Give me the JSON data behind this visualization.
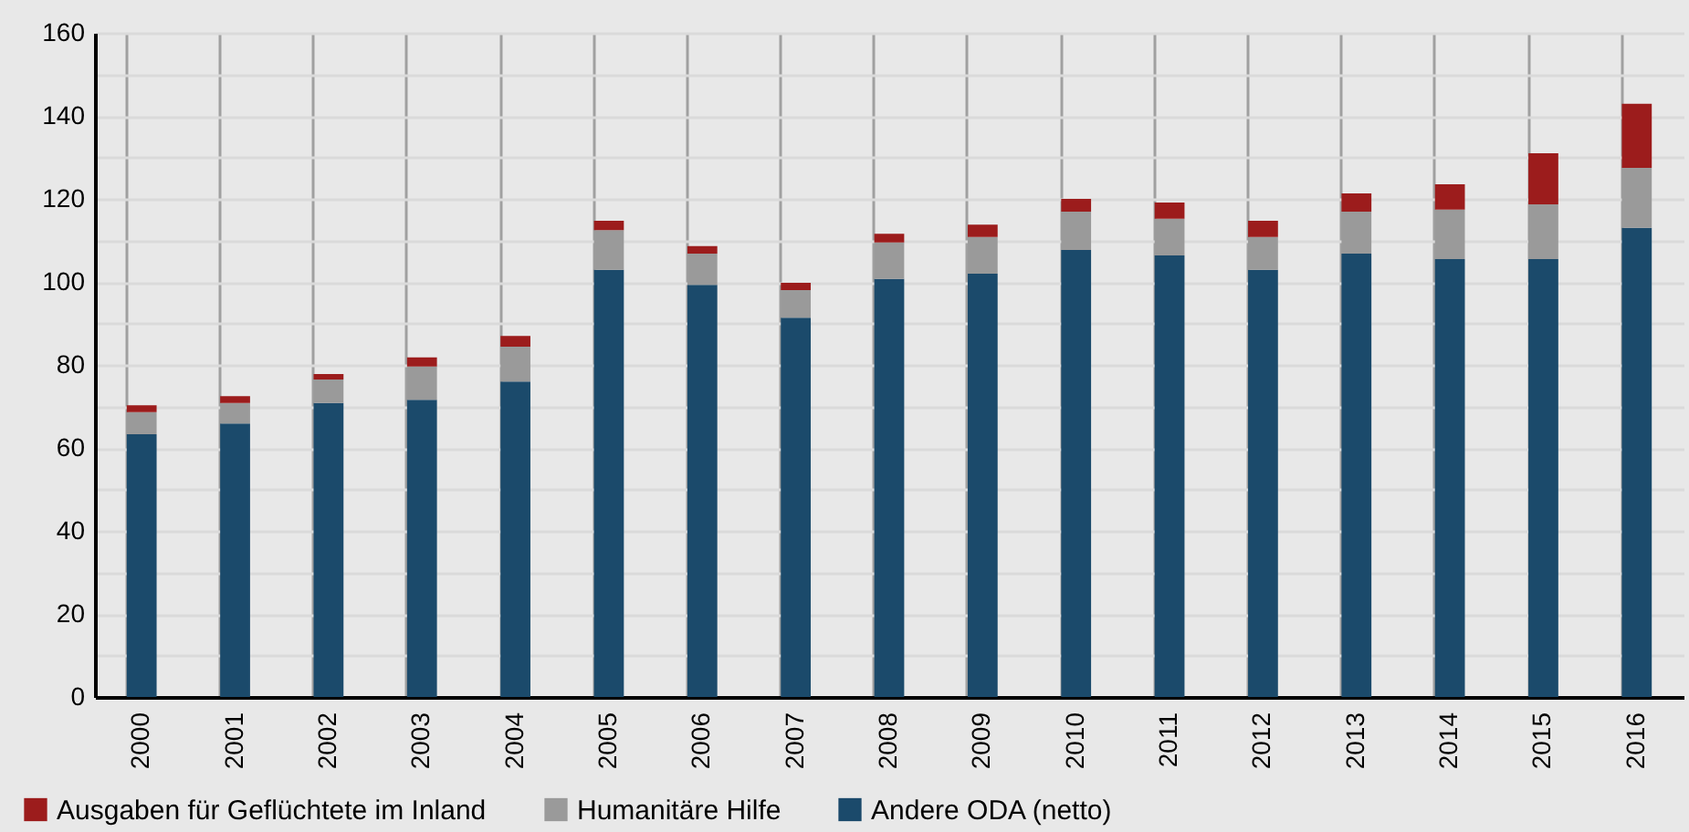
{
  "chart_data": {
    "type": "bar",
    "stacked": true,
    "grid": true,
    "legend": "bottom",
    "categories": [
      "2000",
      "2001",
      "2002",
      "2003",
      "2004",
      "2005",
      "2006",
      "2007",
      "2008",
      "2009",
      "2010",
      "2011",
      "2012",
      "2013",
      "2014",
      "2015",
      "2016"
    ],
    "ylim": [
      0,
      160
    ],
    "yticks": [
      0,
      {
        "value": 10,
        "label": null
      },
      20,
      {
        "value": 30,
        "label": null
      },
      40,
      {
        "value": 50,
        "label": null
      },
      60,
      {
        "value": 70,
        "label": null
      },
      80,
      {
        "value": 90,
        "label": null
      },
      100,
      {
        "value": 110,
        "label": null
      },
      120,
      {
        "value": 130,
        "label": null
      },
      140,
      {
        "value": 150,
        "label": null
      },
      160
    ],
    "series": [
      {
        "name": "Andere ODA (netto)",
        "color": "#1b4a6b",
        "values": [
          63.3,
          65.9,
          70.8,
          71.6,
          76.0,
          102.9,
          99.3,
          91.4,
          100.7,
          102.0,
          107.7,
          106.4,
          102.9,
          106.8,
          105.5,
          105.5,
          113.0
        ]
      },
      {
        "name": "Humanitäre Hilfe",
        "color": "#9a9a9a",
        "values": [
          5.3,
          4.9,
          5.7,
          8.0,
          8.4,
          9.6,
          7.5,
          6.6,
          8.8,
          8.8,
          9.2,
          8.8,
          7.9,
          10.1,
          11.9,
          13.2,
          14.5
        ]
      },
      {
        "name": "Ausgaben für Geflüchtete im Inland",
        "color": "#9c1c1c",
        "values": [
          1.7,
          1.7,
          1.3,
          2.2,
          2.6,
          2.2,
          1.8,
          1.8,
          2.1,
          3.0,
          3.1,
          3.9,
          3.9,
          4.4,
          6.1,
          12.3,
          15.4
        ]
      }
    ]
  }
}
